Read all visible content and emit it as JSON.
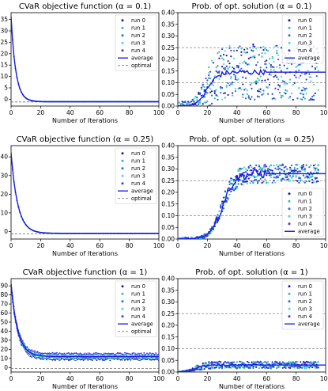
{
  "colors": {
    "run0": "#1a1aa8",
    "run1": "#2abfbf",
    "run2": "#2a6ed6",
    "run3": "#4fd6d6",
    "run4": "#3a3ad8",
    "average": "#1a1ae0",
    "optimal": "#666666",
    "ref_lines": "#888888"
  },
  "legend_labels": [
    "run 0",
    "run 1",
    "run 2",
    "run 3",
    "run 4",
    "average",
    "optimal"
  ],
  "chart_data": [
    {
      "type": "line",
      "title": "CVaR objective function (α = 0.1)",
      "xlabel": "Number of Iterations",
      "xlim": [
        0,
        100
      ],
      "ylim": [
        -3,
        38
      ],
      "xticks": [
        0,
        20,
        40,
        60,
        80,
        100
      ],
      "yticks": [
        0,
        5,
        10,
        15,
        20,
        25,
        30,
        35
      ],
      "legend": "top-right",
      "optimal": -1.2,
      "curve": {
        "start": 36,
        "plateau": -1.1,
        "decay": 3.2
      }
    },
    {
      "type": "scatter",
      "title": "Prob. of opt. solution (α = 0.1)",
      "xlabel": "Number of Iterations",
      "xlim": [
        0,
        100
      ],
      "ylim": [
        0,
        0.4
      ],
      "xticks": [
        0,
        20,
        40,
        60,
        80,
        100
      ],
      "yticks": [
        0.0,
        0.05,
        0.1,
        0.15,
        0.2,
        0.25,
        0.3,
        0.35,
        0.4
      ],
      "legend": "top-right",
      "ref_lines": [
        0.25,
        0.1
      ],
      "curve": {
        "plateau": 0.145,
        "rise_mid": 20,
        "rise_width": 3.5,
        "spread": 0.12
      }
    },
    {
      "type": "line",
      "title": "CVaR objective function (α = 0.25)",
      "xlabel": "Number of Iterations",
      "xlim": [
        0,
        100
      ],
      "ylim": [
        -4,
        46
      ],
      "xticks": [
        0,
        20,
        40,
        60,
        80,
        100
      ],
      "yticks": [
        0,
        10,
        20,
        30,
        40
      ],
      "legend": "top-right",
      "optimal": -1.2,
      "curve": {
        "start": 42,
        "plateau": -1.0,
        "decay": 4.5
      }
    },
    {
      "type": "scatter",
      "title": "Prob. of opt. solution (α = 0.25)",
      "xlabel": "Number of Iterations",
      "xlim": [
        0,
        100
      ],
      "ylim": [
        0,
        0.4
      ],
      "xticks": [
        0,
        20,
        40,
        60,
        80,
        100
      ],
      "yticks": [
        0.0,
        0.05,
        0.1,
        0.15,
        0.2,
        0.25,
        0.3,
        0.35,
        0.4
      ],
      "legend": "bottom-right",
      "ref_lines": [
        0.25,
        0.1
      ],
      "curve": {
        "plateau": 0.28,
        "rise_mid": 30,
        "rise_width": 4,
        "spread": 0.04
      }
    },
    {
      "type": "line",
      "title": "CVaR objective function (α = 1)",
      "xlabel": "Number of Iterations",
      "xlim": [
        0,
        100
      ],
      "ylim": [
        -5,
        98
      ],
      "xticks": [
        0,
        20,
        40,
        60,
        80,
        100
      ],
      "yticks": [
        0,
        10,
        20,
        30,
        40,
        50,
        60,
        70,
        80,
        90
      ],
      "legend": "top-right",
      "optimal": -1.2,
      "curve": {
        "start": 92,
        "plateau": 12,
        "decay": 4.5,
        "spread": 2.5
      }
    },
    {
      "type": "scatter",
      "title": "Prob. of opt. solution (α = 1)",
      "xlabel": "Number of Iterations",
      "xlim": [
        0,
        100
      ],
      "ylim": [
        0,
        0.4
      ],
      "xticks": [
        0,
        20,
        40,
        60,
        80,
        100
      ],
      "yticks": [
        0.0,
        0.05,
        0.1,
        0.15,
        0.2,
        0.25,
        0.3,
        0.35,
        0.4
      ],
      "legend": "top-right",
      "ref_lines": [
        0.25,
        0.1
      ],
      "curve": {
        "plateau": 0.03,
        "rise_mid": 12,
        "rise_width": 3,
        "spread": 0.015
      }
    }
  ]
}
